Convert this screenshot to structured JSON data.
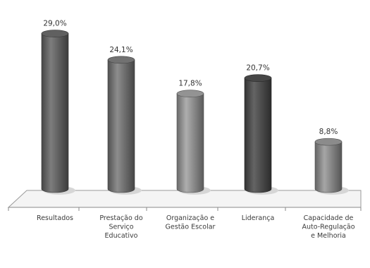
{
  "chart_data": {
    "type": "bar",
    "style": "3d-cylinder",
    "categories": [
      [
        "Resultados"
      ],
      [
        "Prestação do",
        "Serviço",
        "Educativo"
      ],
      [
        "Organização e",
        "Gestão Escolar"
      ],
      [
        "Liderança"
      ],
      [
        "Capacidade de",
        "Auto-Regulação",
        "e Melhoria"
      ]
    ],
    "values": [
      29.0,
      24.1,
      17.8,
      20.7,
      8.8
    ],
    "value_labels": [
      "29,0%",
      "24,1%",
      "17,8%",
      "20,7%",
      "8,8%"
    ],
    "bar_colors": [
      "#6b6b6b",
      "#7d7d7d",
      "#a3a3a3",
      "#4f4f4f",
      "#9a9a9a"
    ],
    "ylim": [
      0,
      30
    ],
    "grid": false,
    "legend": "none",
    "title": "",
    "xlabel": "",
    "ylabel": ""
  }
}
